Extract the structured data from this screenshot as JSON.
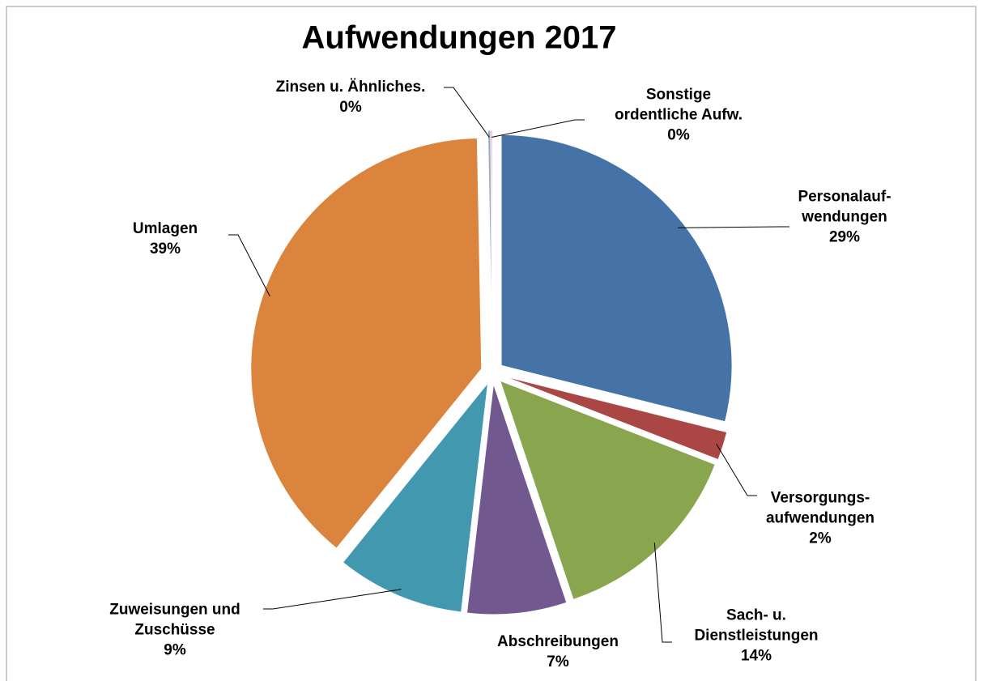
{
  "chart_data": {
    "type": "pie",
    "title": "Aufwendungen 2017",
    "categories": [
      "Personalauf-\nwendungen",
      "Versorgungs-\naufwendungen",
      "Sach- u.\nDienstleistungen",
      "Abschreibungen",
      "Zuweisungen und\nZuschüsse",
      "Umlagen",
      "Zinsen u. Ähnliches.",
      "Sonstige\nordentliche Aufw."
    ],
    "values": [
      29,
      2,
      14,
      7,
      9,
      39,
      0.2,
      0.1
    ],
    "value_labels": [
      "29%",
      "2%",
      "14%",
      "7%",
      "9%",
      "39%",
      "0%",
      "0%"
    ],
    "colors": [
      "#4572a7",
      "#aa4643",
      "#89a54e",
      "#71588f",
      "#4198af",
      "#db843d",
      "#93a9cf",
      "#d19392"
    ]
  }
}
